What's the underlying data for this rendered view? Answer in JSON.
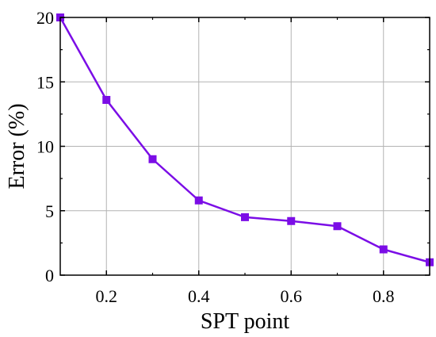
{
  "chart_data": {
    "type": "line",
    "xlabel": "SPT point",
    "ylabel": "Error (%)",
    "xlim": [
      0.1,
      0.9
    ],
    "ylim": [
      0,
      20
    ],
    "grid": true,
    "legend": "none",
    "x_ticks": [
      0.2,
      0.4,
      0.6,
      0.8
    ],
    "x_tick_labels": [
      "0.2",
      "0.4",
      "0.6",
      "0.8"
    ],
    "y_ticks": [
      0,
      5,
      10,
      15,
      20
    ],
    "y_tick_labels": [
      "0",
      "5",
      "10",
      "15",
      "20"
    ],
    "series": [
      {
        "color": "#7b0de6",
        "marker": "square",
        "x": [
          0.1,
          0.2,
          0.3,
          0.4,
          0.5,
          0.6,
          0.7,
          0.8,
          0.9
        ],
        "y": [
          20.0,
          13.6,
          9.0,
          5.8,
          4.5,
          4.2,
          3.8,
          2.0,
          1.0
        ]
      }
    ]
  }
}
